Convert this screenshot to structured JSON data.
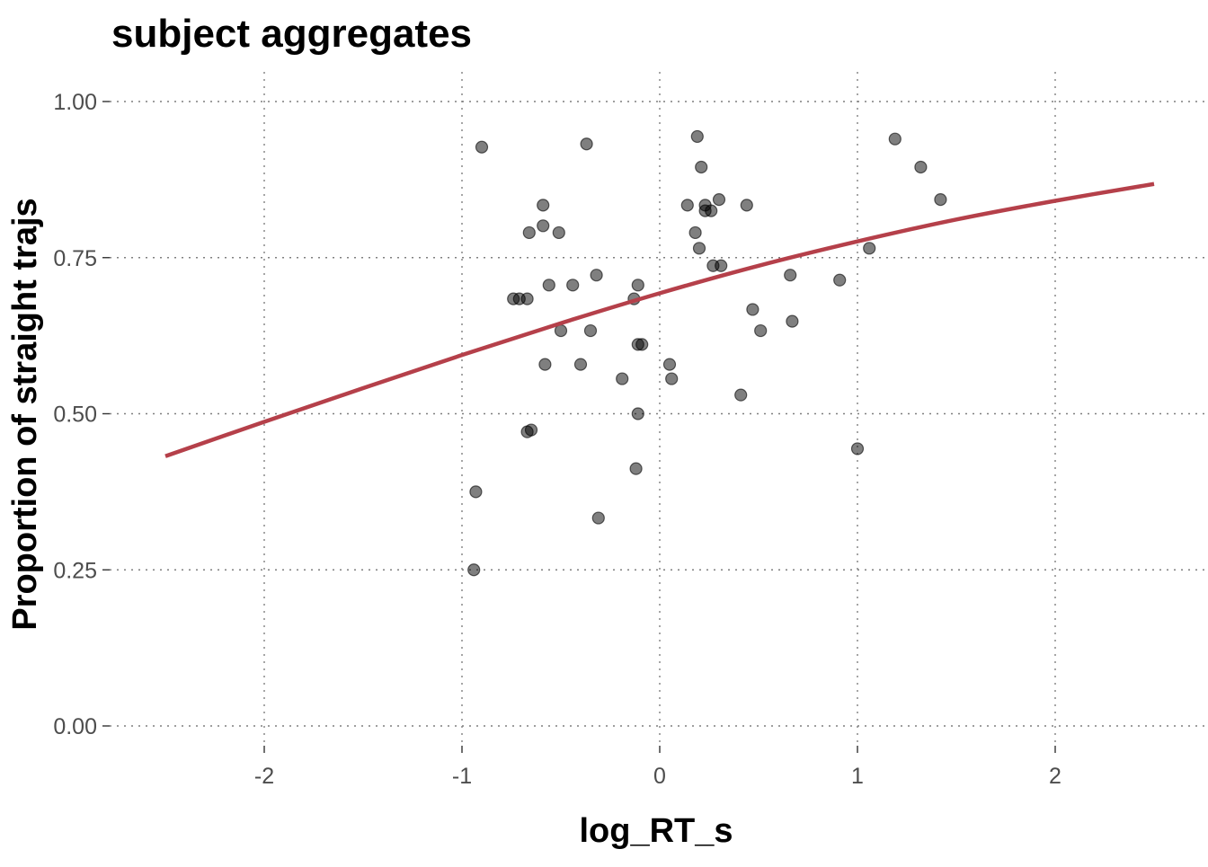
{
  "chart_data": {
    "type": "scatter",
    "title": "subject aggregates",
    "xlabel": "log_RT_s",
    "ylabel": "Proportion of straight trajs",
    "xlim": [
      -2.6,
      2.6
    ],
    "ylim": [
      0,
      1
    ],
    "x_ticks": [
      -2,
      -1,
      0,
      1,
      2
    ],
    "x_tick_labels": [
      "-2",
      "-1",
      "0",
      "1",
      "2"
    ],
    "y_ticks": [
      0,
      0.25,
      0.5,
      0.75,
      1
    ],
    "y_tick_labels": [
      "0.00",
      "0.25",
      "0.50",
      "0.75",
      "1.00"
    ],
    "grid": "dotted",
    "point_color": "#000000",
    "fit_color": "#b5404a",
    "series": [
      {
        "type": "scatter",
        "points": [
          [
            -0.9,
            0.927
          ],
          [
            -0.37,
            0.932
          ],
          [
            0.19,
            0.944
          ],
          [
            1.19,
            0.94
          ],
          [
            0.21,
            0.895
          ],
          [
            1.32,
            0.895
          ],
          [
            -0.59,
            0.834
          ],
          [
            0.14,
            0.834
          ],
          [
            0.23,
            0.834
          ],
          [
            0.3,
            0.843
          ],
          [
            0.44,
            0.834
          ],
          [
            1.42,
            0.843
          ],
          [
            0.23,
            0.825
          ],
          [
            0.26,
            0.825
          ],
          [
            -0.59,
            0.801
          ],
          [
            -0.66,
            0.79
          ],
          [
            -0.51,
            0.79
          ],
          [
            0.18,
            0.79
          ],
          [
            0.2,
            0.765
          ],
          [
            1.06,
            0.765
          ],
          [
            0.27,
            0.737
          ],
          [
            0.31,
            0.737
          ],
          [
            -0.32,
            0.722
          ],
          [
            0.66,
            0.722
          ],
          [
            0.91,
            0.714
          ],
          [
            -0.56,
            0.706
          ],
          [
            -0.44,
            0.706
          ],
          [
            -0.11,
            0.706
          ],
          [
            -0.74,
            0.684
          ],
          [
            -0.71,
            0.684
          ],
          [
            -0.67,
            0.684
          ],
          [
            -0.13,
            0.684
          ],
          [
            0.47,
            0.667
          ],
          [
            0.67,
            0.648
          ],
          [
            -0.5,
            0.633
          ],
          [
            -0.35,
            0.633
          ],
          [
            0.51,
            0.633
          ],
          [
            -0.11,
            0.611
          ],
          [
            -0.09,
            0.611
          ],
          [
            -0.58,
            0.579
          ],
          [
            -0.4,
            0.579
          ],
          [
            0.05,
            0.579
          ],
          [
            -0.19,
            0.556
          ],
          [
            0.06,
            0.556
          ],
          [
            0.41,
            0.53
          ],
          [
            -0.11,
            0.5
          ],
          [
            -0.67,
            0.471
          ],
          [
            -0.65,
            0.474
          ],
          [
            1.0,
            0.444
          ],
          [
            -0.12,
            0.412
          ],
          [
            -0.93,
            0.375
          ],
          [
            -0.31,
            0.333
          ],
          [
            -0.94,
            0.25
          ]
        ]
      },
      {
        "type": "line",
        "x": [
          -2.5,
          -2.0,
          -1.5,
          -1.0,
          -0.5,
          0.0,
          0.5,
          1.0,
          1.5,
          2.0,
          2.5
        ],
        "y": [
          0.432,
          0.487,
          0.541,
          0.594,
          0.645,
          0.693,
          0.737,
          0.776,
          0.811,
          0.841,
          0.868
        ]
      }
    ]
  }
}
